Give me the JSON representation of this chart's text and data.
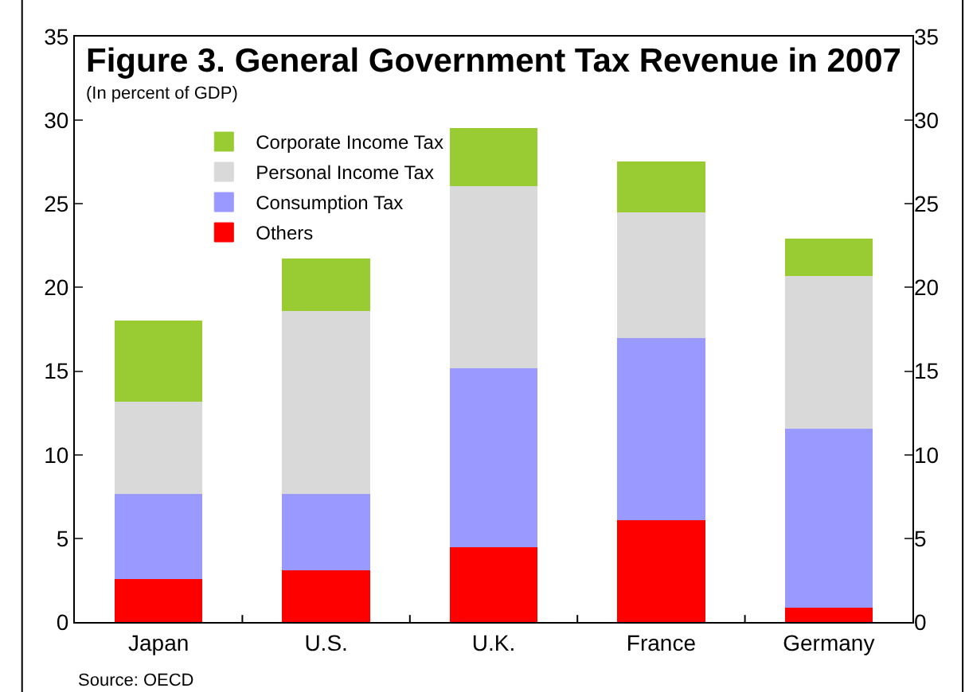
{
  "chart_data": {
    "type": "bar",
    "title": "Figure 3. General Government Tax Revenue in 2007",
    "subtitle": "(In percent of GDP)",
    "categories": [
      "Japan",
      "U.S.",
      "U.K.",
      "France",
      "Germany"
    ],
    "stacked": true,
    "series": [
      {
        "name": "Others",
        "color": "#ff0000",
        "values": [
          2.6,
          3.1,
          4.5,
          6.1,
          0.9
        ]
      },
      {
        "name": "Consumption Tax",
        "color": "#9999ff",
        "values": [
          5.1,
          4.6,
          10.7,
          10.9,
          10.7
        ]
      },
      {
        "name": "Personal Income Tax",
        "color": "#d9d9d9",
        "values": [
          5.5,
          10.9,
          10.9,
          7.5,
          9.1
        ]
      },
      {
        "name": "Corporate Income Tax",
        "color": "#99cc33",
        "values": [
          4.8,
          3.1,
          3.4,
          3.0,
          2.2
        ]
      }
    ],
    "ylim": [
      0,
      35
    ],
    "yticks": [
      0,
      5,
      10,
      15,
      20,
      25,
      30,
      35
    ],
    "y2lim": [
      0,
      35
    ],
    "y2ticks": [
      0,
      5,
      10,
      15,
      20,
      25,
      30,
      35
    ],
    "legend": "top left",
    "annotations": [
      "Source: OECD"
    ]
  }
}
